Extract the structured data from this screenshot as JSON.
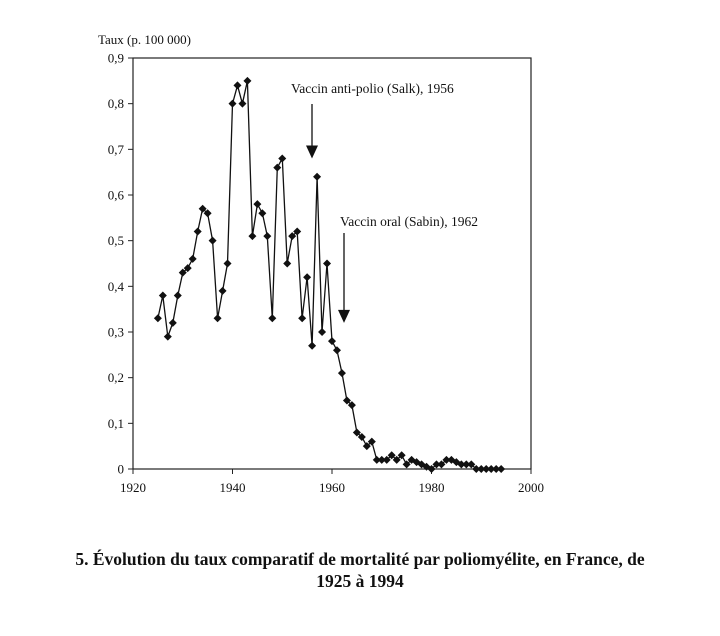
{
  "chart_data": {
    "type": "line",
    "ylabel": "Taux (p. 100 000)",
    "xlabel": "",
    "xlim": [
      1920,
      2000
    ],
    "ylim": [
      0,
      0.9
    ],
    "x_ticks": [
      "1920",
      "1940",
      "1960",
      "1980",
      "2000"
    ],
    "y_ticks": [
      "0",
      "0,1",
      "0,2",
      "0,3",
      "0,4",
      "0,5",
      "0,6",
      "0,7",
      "0,8",
      "0,9"
    ],
    "grid": false,
    "marker": "diamond",
    "series": [
      {
        "x": [
          1925,
          1926,
          1927,
          1928,
          1929,
          1930,
          1931,
          1932,
          1933,
          1934,
          1935,
          1936,
          1937,
          1938,
          1939,
          1940,
          1941,
          1942,
          1943,
          1944,
          1945,
          1946,
          1947,
          1948,
          1949,
          1950,
          1951,
          1952,
          1953,
          1954,
          1955,
          1956,
          1957,
          1958,
          1959,
          1960,
          1961,
          1962,
          1963,
          1964,
          1965,
          1966,
          1967,
          1968,
          1969,
          1970,
          1971,
          1972,
          1973,
          1974,
          1975,
          1976,
          1977,
          1978,
          1979,
          1980,
          1981,
          1982,
          1983,
          1984,
          1985,
          1986,
          1987,
          1988,
          1989,
          1990,
          1991,
          1992,
          1993,
          1994
        ],
        "y": [
          0.33,
          0.38,
          0.29,
          0.32,
          0.38,
          0.43,
          0.44,
          0.46,
          0.52,
          0.57,
          0.56,
          0.5,
          0.33,
          0.39,
          0.45,
          0.8,
          0.84,
          0.8,
          0.85,
          0.51,
          0.58,
          0.56,
          0.51,
          0.33,
          0.66,
          0.68,
          0.45,
          0.51,
          0.52,
          0.33,
          0.42,
          0.27,
          0.64,
          0.3,
          0.45,
          0.28,
          0.26,
          0.21,
          0.15,
          0.14,
          0.08,
          0.07,
          0.05,
          0.06,
          0.02,
          0.02,
          0.02,
          0.03,
          0.02,
          0.03,
          0.01,
          0.02,
          0.015,
          0.01,
          0.005,
          0.0,
          0.01,
          0.01,
          0.02,
          0.02,
          0.015,
          0.01,
          0.01,
          0.01,
          0.0,
          0.0,
          0.0,
          0.0,
          0.0,
          0.0
        ]
      }
    ],
    "annotations": [
      {
        "text": "Vaccin anti-polio (Salk), 1956",
        "x": 1956,
        "arrow_y": 0.68
      },
      {
        "text": "Vaccin oral (Sabin), 1962",
        "x": 1962,
        "arrow_y": 0.32
      }
    ]
  },
  "caption": {
    "line1": "5. Évolution du taux comparatif de mortalité par poliomyélite, en France, de",
    "line2": "1925 à 1994"
  }
}
